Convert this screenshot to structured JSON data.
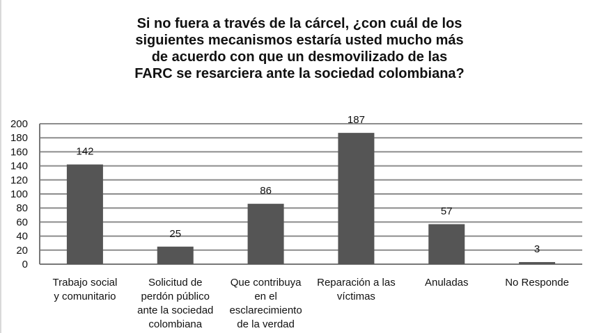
{
  "chart_data": {
    "type": "bar",
    "title_lines": [
      "Si no fuera a través de la cárcel, ¿con cuál de los",
      "siguientes mecanismos estaría usted mucho más",
      "de acuerdo con que un desmovilizado de las",
      "FARC se resarciera ante la sociedad colombiana?"
    ],
    "categories": [
      [
        "Trabajo social",
        "y comunitario"
      ],
      [
        "Solicitud de",
        "perdón público",
        "ante la sociedad",
        "colombiana"
      ],
      [
        "Que contribuya",
        "en el",
        "esclarecimiento",
        "de la verdad"
      ],
      [
        "Reparación a las",
        "víctimas"
      ],
      [
        "Anuladas"
      ],
      [
        "No Responde"
      ]
    ],
    "values": [
      142,
      25,
      86,
      187,
      57,
      3
    ],
    "data_labels": [
      "142",
      "25",
      "86",
      "187",
      "57",
      "3"
    ],
    "ylim": [
      0,
      200
    ],
    "yticks": [
      0,
      20,
      40,
      60,
      80,
      100,
      120,
      140,
      160,
      180,
      200
    ],
    "grid": true,
    "legend": "none",
    "colors": {
      "bar": "#555555",
      "grid": "#8c8c8c",
      "axis": "#777777",
      "text": "#111111"
    }
  }
}
